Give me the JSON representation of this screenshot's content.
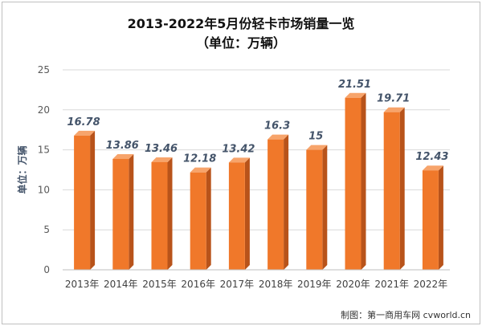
{
  "chart_data": {
    "type": "bar",
    "title": "2013-2022年5月份轻卡市场销量一览",
    "subtitle": "（单位：万辆）",
    "ylabel": "单位：万辆",
    "xlabel": "",
    "categories": [
      "2013年",
      "2014年",
      "2015年",
      "2016年",
      "2017年",
      "2018年",
      "2019年",
      "2020年",
      "2021年",
      "2022年"
    ],
    "values": [
      16.78,
      13.86,
      13.46,
      12.18,
      13.42,
      16.3,
      15,
      21.51,
      19.71,
      12.43
    ],
    "value_labels": [
      "16.78",
      "13.86",
      "13.46",
      "12.18",
      "13.42",
      "16.3",
      "15",
      "21.51",
      "19.71",
      "12.43"
    ],
    "ylim": [
      0,
      25
    ],
    "yticks": [
      0,
      5,
      10,
      15,
      20,
      25
    ],
    "grid": true,
    "legend": "none",
    "bar_color": "#f0782a",
    "bar_side_color": "#b8531a",
    "bar_top_color": "#f7a46b",
    "label_color": "#44546a"
  },
  "footer": {
    "credit": "制图：第一商用车网 cvworld.cn"
  }
}
